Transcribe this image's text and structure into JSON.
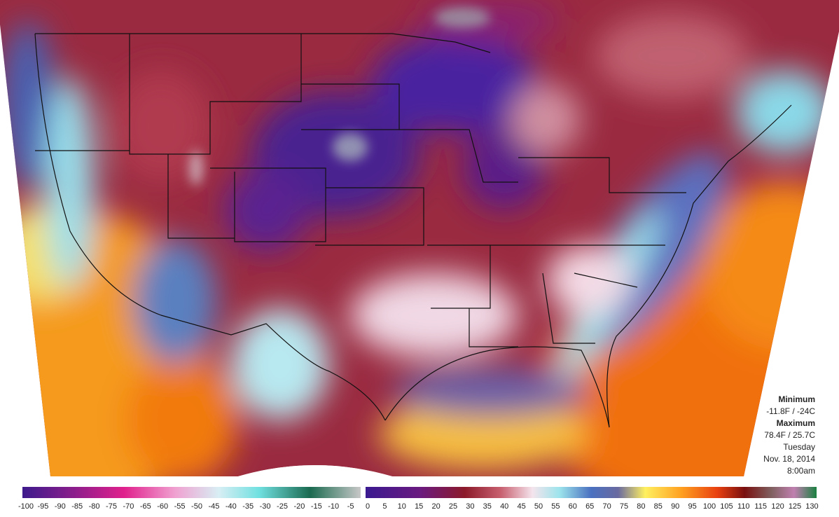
{
  "info": {
    "minimum_label": "Minimum",
    "minimum_value": "-11.8F / -24C",
    "maximum_label": "Maximum",
    "maximum_value": "78.4F / 25.7C",
    "day": "Tuesday",
    "date": "Nov. 18, 2014",
    "time": "8:00am"
  },
  "legend": {
    "ticks": [
      -100,
      -95,
      -90,
      -85,
      -80,
      -75,
      -70,
      -65,
      -60,
      -55,
      -50,
      -45,
      -40,
      -35,
      -30,
      -25,
      -20,
      -15,
      -10,
      -5,
      0,
      5,
      10,
      15,
      20,
      25,
      30,
      35,
      40,
      45,
      50,
      55,
      60,
      65,
      70,
      75,
      80,
      85,
      90,
      95,
      100,
      105,
      110,
      115,
      120,
      125,
      130
    ]
  }
}
